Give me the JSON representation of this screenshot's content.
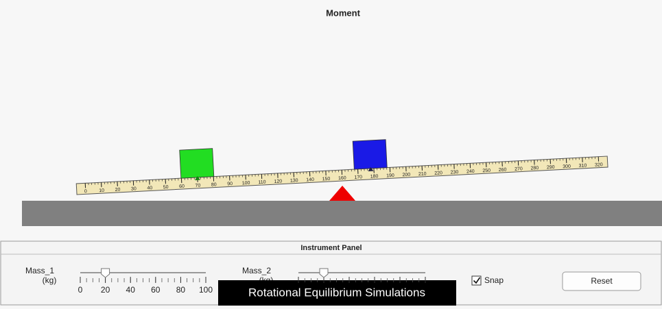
{
  "title": "Moment",
  "ruler": {
    "labels": [
      0,
      10,
      20,
      30,
      40,
      50,
      60,
      70,
      80,
      90,
      100,
      110,
      120,
      130,
      140,
      150,
      160,
      170,
      180,
      190,
      200,
      210,
      220,
      230,
      240,
      250,
      260,
      270,
      280,
      290,
      300,
      310,
      320
    ],
    "mass_1_position": 70,
    "mass_2_position": 178,
    "pivot_position": 160
  },
  "panel": {
    "title": "Instrument Panel",
    "mass_1": {
      "label": "Mass_1",
      "unit": "(kg)",
      "value": 20,
      "ticks": [
        0,
        20,
        40,
        60,
        80,
        100
      ]
    },
    "mass_2": {
      "label": "Mass_2",
      "unit": "(kg)",
      "value": 20
    },
    "snap": "Snap",
    "reset": "Reset"
  },
  "caption": "Rotational Equilibrium Simulations"
}
